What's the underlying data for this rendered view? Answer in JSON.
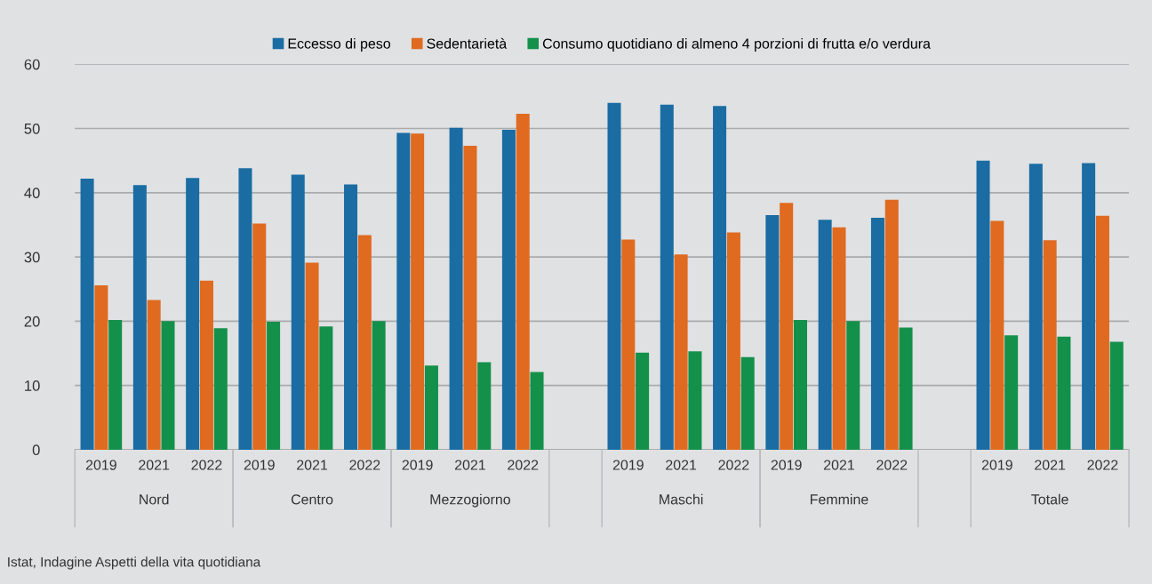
{
  "chart_data": {
    "type": "bar",
    "categories": [
      "2019",
      "2021",
      "2022",
      "2019",
      "2021",
      "2022",
      "2019",
      "2021",
      "2022",
      null,
      "2019",
      "2021",
      "2022",
      "2019",
      "2021",
      "2022",
      null,
      "2019",
      "2021",
      "2022"
    ],
    "series": [
      {
        "name": "Eccesso di peso",
        "color": "#1a6ca3",
        "values": [
          42.2,
          41.2,
          42.3,
          43.8,
          42.8,
          41.3,
          49.3,
          50.1,
          49.8,
          null,
          54.0,
          53.7,
          53.5,
          36.5,
          35.8,
          36.1,
          null,
          45.0,
          44.5,
          44.6
        ]
      },
      {
        "name": "Sedentarietà",
        "color": "#e06a1f",
        "values": [
          25.6,
          23.3,
          26.3,
          35.2,
          29.1,
          33.4,
          49.2,
          47.3,
          52.3,
          null,
          32.7,
          30.4,
          33.8,
          38.4,
          34.6,
          38.9,
          null,
          35.6,
          32.6,
          36.4
        ]
      },
      {
        "name": "Consumo quotidiano di almeno 4 porzioni di frutta e/o verdura",
        "color": "#13904a",
        "values": [
          20.2,
          20.0,
          18.9,
          19.9,
          19.2,
          20.0,
          13.1,
          13.6,
          12.1,
          null,
          15.1,
          15.3,
          14.4,
          20.2,
          20.0,
          19.0,
          null,
          17.8,
          17.6,
          16.8
        ]
      }
    ],
    "ylim": [
      0,
      60
    ],
    "yticks": [
      0,
      10,
      20,
      30,
      40,
      50,
      60
    ],
    "grid": "y",
    "legend": "top",
    "annotations": [
      "Nord",
      "Centro",
      "Mezzogiorno",
      "Maschi",
      "Femmine",
      "Totale",
      "Istat, Indagine Aspetti della vita quotidiana"
    ]
  }
}
